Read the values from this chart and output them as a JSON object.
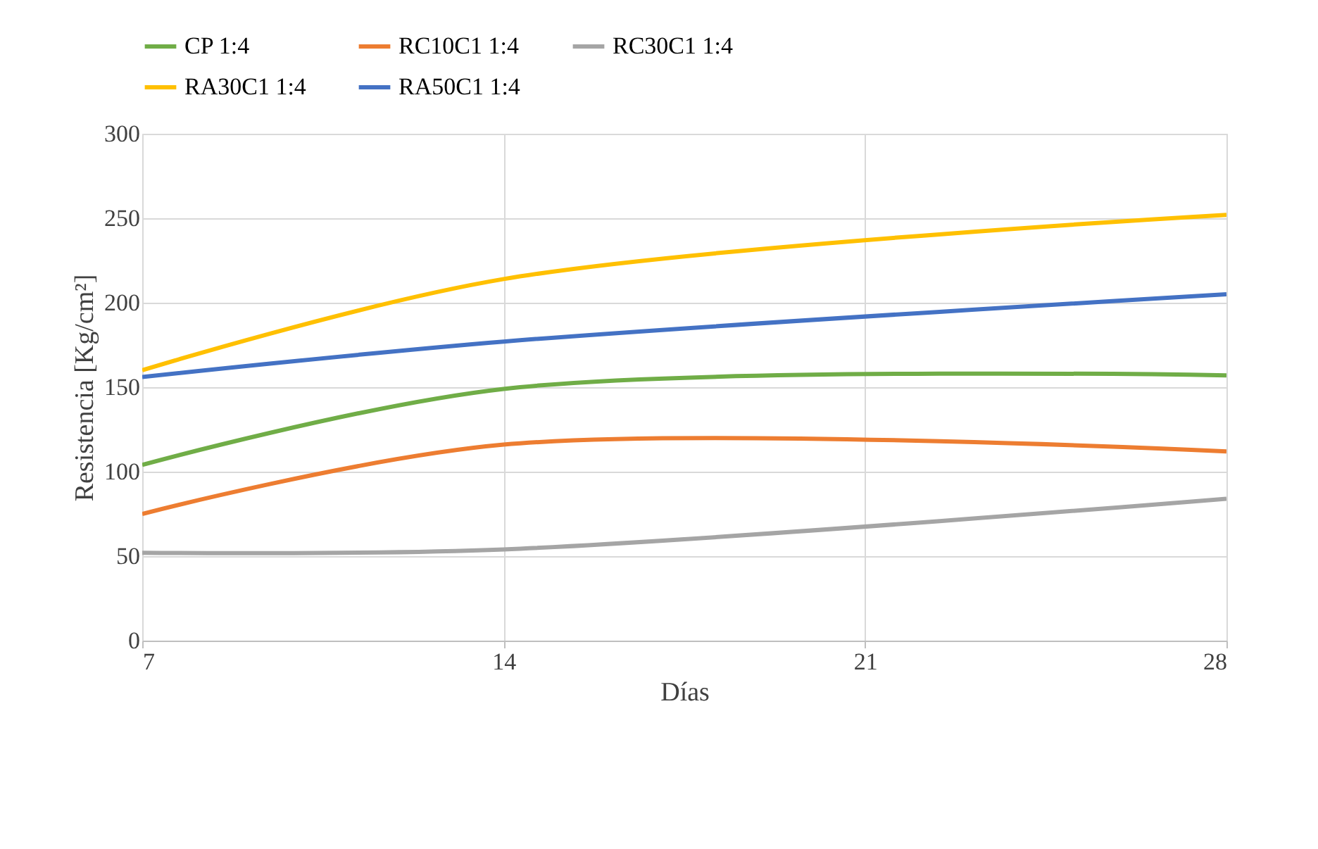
{
  "chart_data": {
    "type": "line",
    "xlabel": "Días",
    "ylabel": "Resistencia [Kg/cm²]",
    "x": [
      7,
      14,
      28
    ],
    "series": [
      {
        "name": "CP 1:4",
        "color": "#70ad47",
        "values": [
          104,
          149,
          157
        ]
      },
      {
        "name": "RC10C1 1:4",
        "color": "#ed7d31",
        "values": [
          75,
          116,
          112
        ]
      },
      {
        "name": "RC30C1 1:4",
        "color": "#a5a5a5",
        "values": [
          52,
          54,
          84
        ]
      },
      {
        "name": "RA30C1 1:4",
        "color": "#ffc000",
        "values": [
          160,
          214,
          252
        ]
      },
      {
        "name": "RA50C1 1:4",
        "color": "#4472c4",
        "values": [
          156,
          177,
          205
        ]
      }
    ],
    "xlim": [
      7,
      28
    ],
    "xticks": [
      7,
      14,
      21,
      28
    ],
    "ylim": [
      0,
      300
    ],
    "yticks": [
      0,
      50,
      100,
      150,
      200,
      250,
      300
    ],
    "grid": true,
    "legend": "top",
    "marker": "none",
    "line_style": "solid"
  }
}
